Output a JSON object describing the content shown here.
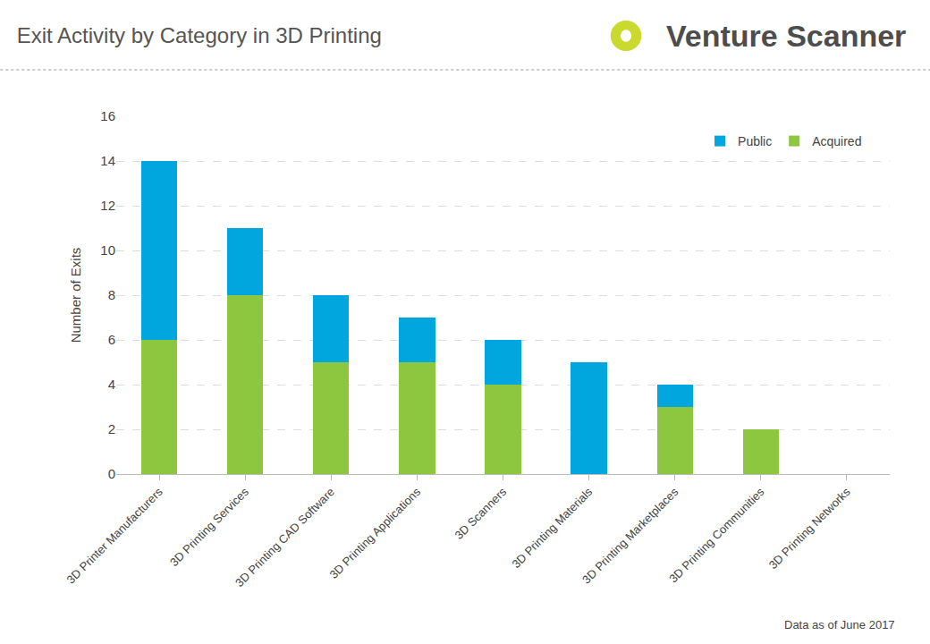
{
  "chart_data": {
    "type": "bar",
    "title": "Exit Activity by Category in 3D Printing",
    "annotations": [
      "Venture Scanner",
      "Data as of June 2017"
    ],
    "y_label": "Number of Exits",
    "categories": [
      "3D Printer Manufacturers",
      "3D Printing Services",
      "3D Printing CAD Software",
      "3D Printing Applications",
      "3D Scanners",
      "3D Printing Materials",
      "3D Printing Marketplaces",
      "3D Printing Communities",
      "3D Printing Networks"
    ],
    "series": [
      {
        "name": "Acquired",
        "color": "#8dc63f",
        "values": [
          6,
          8,
          5,
          5,
          4,
          0,
          3,
          2,
          0
        ]
      },
      {
        "name": "Public",
        "color": "#00a6dd",
        "values": [
          8,
          3,
          3,
          2,
          2,
          5,
          1,
          0,
          0
        ]
      }
    ],
    "stacked": true,
    "ylim": [
      0,
      16
    ],
    "yticks": [
      0,
      2,
      4,
      6,
      8,
      10,
      12,
      14,
      16
    ],
    "grid": true,
    "legend": "upper right"
  }
}
